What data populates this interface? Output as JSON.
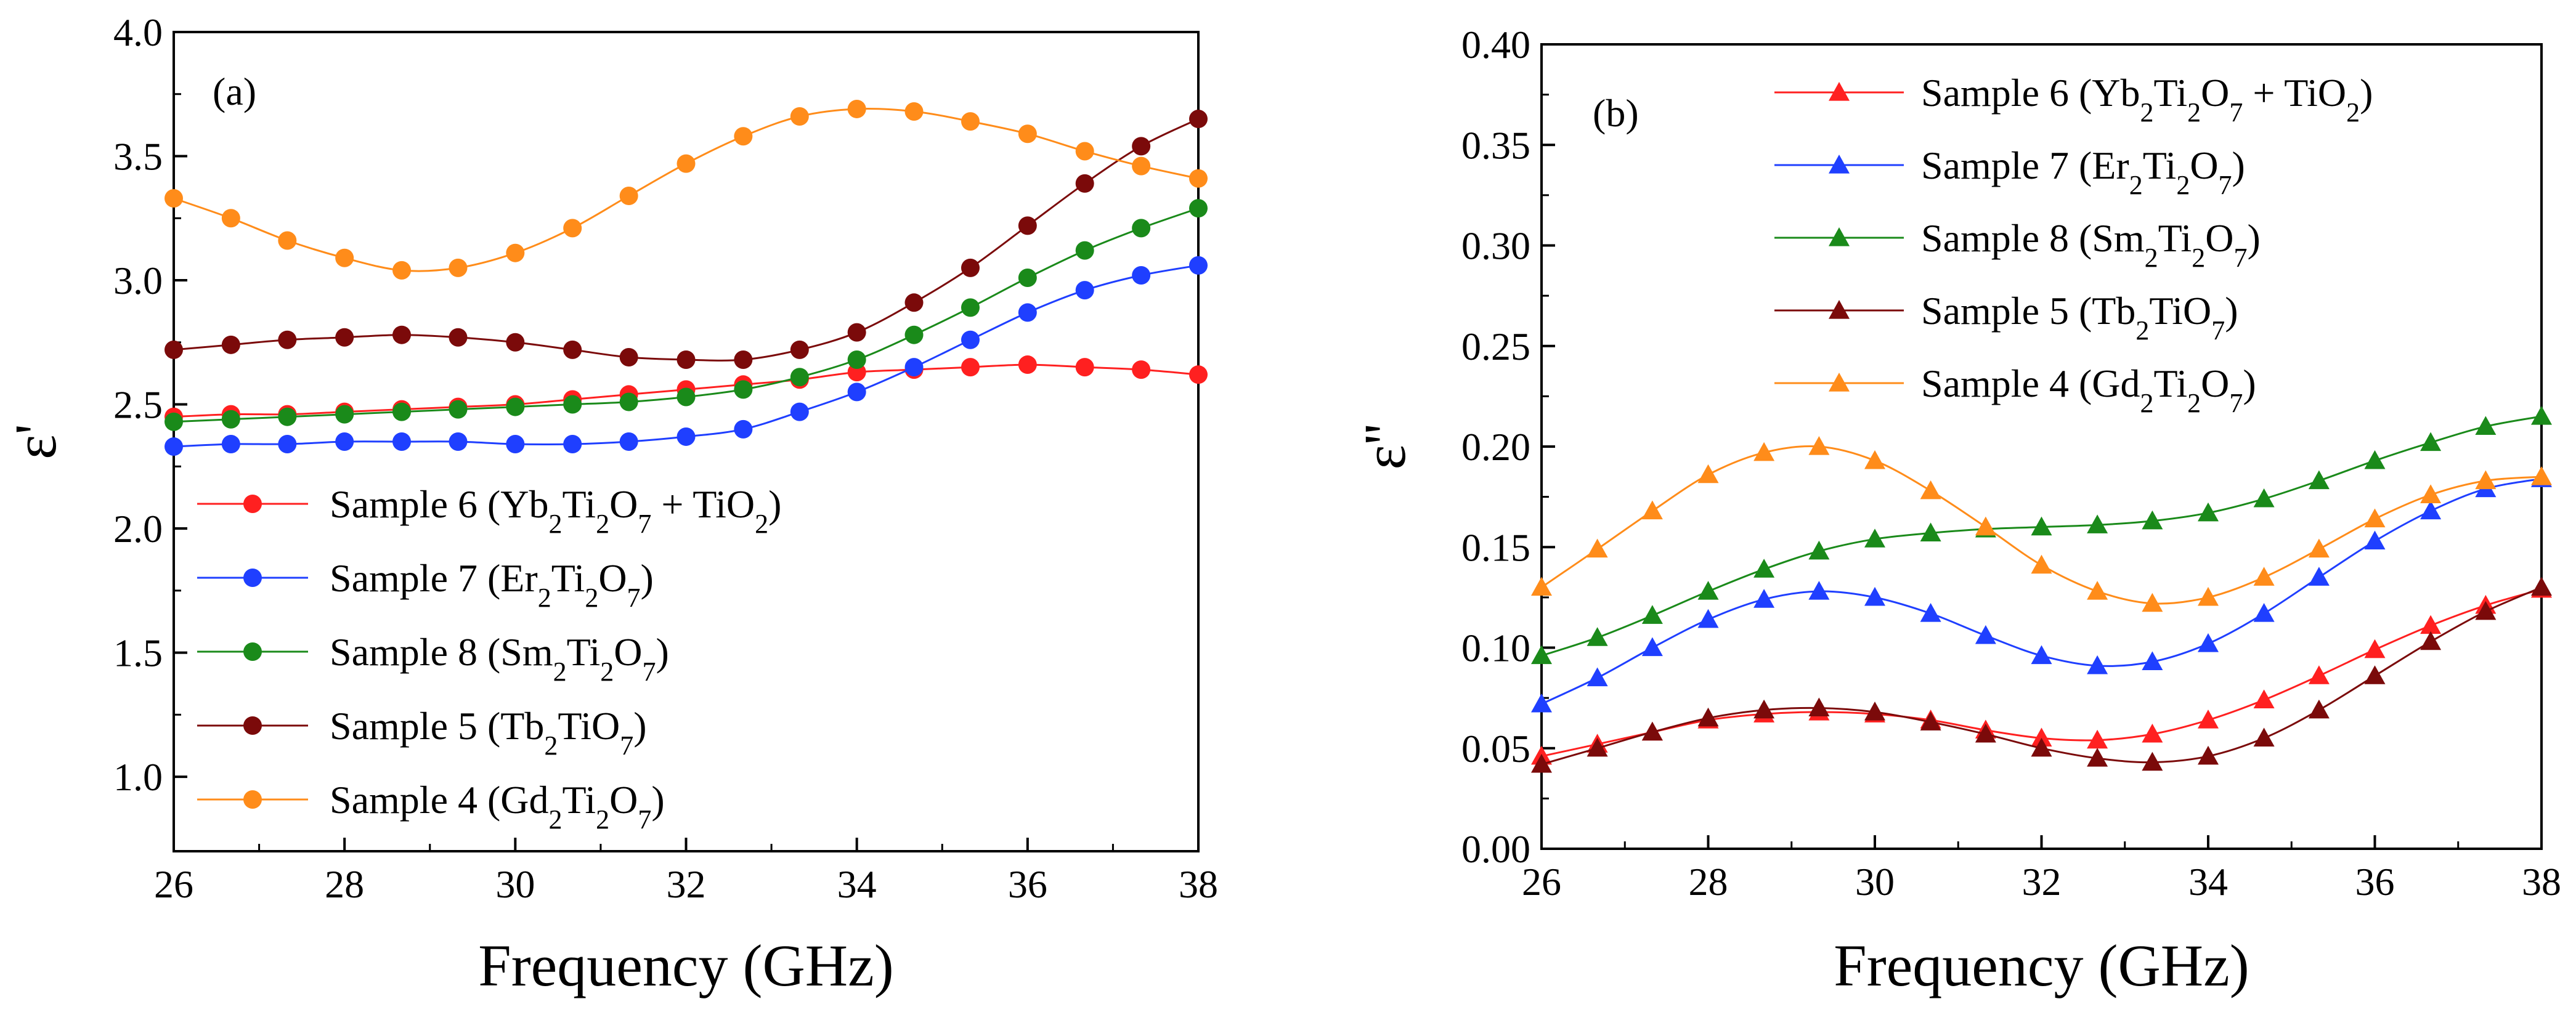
{
  "chart_data": [
    {
      "type": "line",
      "panel_label": "(a)",
      "xlabel": "Frequency (GHz)",
      "ylabel": "ε'",
      "xlim": [
        26,
        38
      ],
      "ylim": [
        0.7,
        4.0
      ],
      "x_ticks": [
        26,
        28,
        30,
        32,
        34,
        36,
        38
      ],
      "y_ticks": [
        1.0,
        1.5,
        2.0,
        2.5,
        3.0,
        3.5,
        4.0
      ],
      "x_tick_labels": [
        "26",
        "28",
        "30",
        "32",
        "34",
        "36",
        "38"
      ],
      "y_tick_labels": [
        "1.0",
        "1.5",
        "2.0",
        "2.5",
        "3.0",
        "3.5",
        "4.0"
      ],
      "marker": "circle",
      "legend_position": "lower-left",
      "x": [
        26.0,
        26.67,
        27.33,
        28.0,
        28.67,
        29.33,
        30.0,
        30.67,
        31.33,
        32.0,
        32.67,
        33.33,
        34.0,
        34.67,
        35.33,
        36.0,
        36.67,
        37.33,
        38.0
      ],
      "series": [
        {
          "name": "Sample 6",
          "formula": [
            [
              "",
              "(Yb"
            ],
            [
              "sub",
              "2"
            ],
            [
              "",
              "Ti"
            ],
            [
              "sub",
              "2"
            ],
            [
              "",
              "O"
            ],
            [
              "sub",
              "7"
            ],
            [
              "",
              " + TiO"
            ],
            [
              "sub",
              "2"
            ],
            [
              "",
              ")"
            ]
          ],
          "color": "#ff2020",
          "values": [
            2.45,
            2.46,
            2.46,
            2.47,
            2.48,
            2.49,
            2.5,
            2.52,
            2.54,
            2.56,
            2.58,
            2.6,
            2.63,
            2.64,
            2.65,
            2.66,
            2.65,
            2.64,
            2.62
          ]
        },
        {
          "name": "Sample 7",
          "formula": [
            [
              "",
              "(Er"
            ],
            [
              "sub",
              "2"
            ],
            [
              "",
              "Ti"
            ],
            [
              "sub",
              "2"
            ],
            [
              "",
              "O"
            ],
            [
              "sub",
              "7"
            ],
            [
              "",
              ")"
            ]
          ],
          "color": "#1f3fff",
          "values": [
            2.33,
            2.34,
            2.34,
            2.35,
            2.35,
            2.35,
            2.34,
            2.34,
            2.35,
            2.37,
            2.4,
            2.47,
            2.55,
            2.65,
            2.76,
            2.87,
            2.96,
            3.02,
            3.06
          ]
        },
        {
          "name": "Sample 8",
          "formula": [
            [
              "",
              "(Sm"
            ],
            [
              "sub",
              "2"
            ],
            [
              "",
              "Ti"
            ],
            [
              "sub",
              "2"
            ],
            [
              "",
              "O"
            ],
            [
              "sub",
              "7"
            ],
            [
              "",
              ")"
            ]
          ],
          "color": "#1a8a1a",
          "values": [
            2.43,
            2.44,
            2.45,
            2.46,
            2.47,
            2.48,
            2.49,
            2.5,
            2.51,
            2.53,
            2.56,
            2.61,
            2.68,
            2.78,
            2.89,
            3.01,
            3.12,
            3.21,
            3.29
          ]
        },
        {
          "name": "Sample 5",
          "formula": [
            [
              "",
              "(Tb"
            ],
            [
              "sub",
              "2"
            ],
            [
              "",
              "TiO"
            ],
            [
              "sub",
              "7"
            ],
            [
              "",
              ")"
            ]
          ],
          "color": "#7b0a0a",
          "values": [
            2.72,
            2.74,
            2.76,
            2.77,
            2.78,
            2.77,
            2.75,
            2.72,
            2.69,
            2.68,
            2.68,
            2.72,
            2.79,
            2.91,
            3.05,
            3.22,
            3.39,
            3.54,
            3.65
          ]
        },
        {
          "name": "Sample 4",
          "formula": [
            [
              "",
              "(Gd"
            ],
            [
              "sub",
              "2"
            ],
            [
              "",
              "Ti"
            ],
            [
              "sub",
              "2"
            ],
            [
              "",
              "O"
            ],
            [
              "sub",
              "7"
            ],
            [
              "",
              ")"
            ]
          ],
          "color": "#ff8c1a",
          "values": [
            3.33,
            3.25,
            3.16,
            3.09,
            3.04,
            3.05,
            3.11,
            3.21,
            3.34,
            3.47,
            3.58,
            3.66,
            3.69,
            3.68,
            3.64,
            3.59,
            3.52,
            3.46,
            3.41
          ]
        }
      ]
    },
    {
      "type": "line",
      "panel_label": "(b)",
      "xlabel": "Frequency (GHz)",
      "ylabel": "ε''",
      "xlim": [
        26,
        38
      ],
      "ylim": [
        0.0,
        0.4
      ],
      "x_ticks": [
        26,
        28,
        30,
        32,
        34,
        36,
        38
      ],
      "y_ticks": [
        0.0,
        0.05,
        0.1,
        0.15,
        0.2,
        0.25,
        0.3,
        0.35,
        0.4
      ],
      "x_tick_labels": [
        "26",
        "28",
        "30",
        "32",
        "34",
        "36",
        "38"
      ],
      "y_tick_labels": [
        "0.00",
        "0.05",
        "0.10",
        "0.15",
        "0.20",
        "0.25",
        "0.30",
        "0.35",
        "0.40"
      ],
      "marker": "triangle",
      "legend_position": "top-left",
      "x": [
        26.0,
        26.67,
        27.33,
        28.0,
        28.67,
        29.33,
        30.0,
        30.67,
        31.33,
        32.0,
        32.67,
        33.33,
        34.0,
        34.67,
        35.33,
        36.0,
        36.67,
        37.33,
        38.0
      ],
      "series": [
        {
          "name": "Sample 6",
          "formula": [
            [
              "",
              "(Yb"
            ],
            [
              "sub",
              "2"
            ],
            [
              "",
              "Ti"
            ],
            [
              "sub",
              "2"
            ],
            [
              "",
              "O"
            ],
            [
              "sub",
              "7"
            ],
            [
              "",
              " + TiO"
            ],
            [
              "sub",
              "2"
            ],
            [
              "",
              ")"
            ]
          ],
          "color": "#ff2020",
          "values": [
            0.046,
            0.052,
            0.058,
            0.064,
            0.067,
            0.068,
            0.067,
            0.064,
            0.059,
            0.055,
            0.054,
            0.057,
            0.064,
            0.074,
            0.086,
            0.099,
            0.111,
            0.121,
            0.129
          ]
        },
        {
          "name": "Sample 7",
          "formula": [
            [
              "",
              "(Er"
            ],
            [
              "sub",
              "2"
            ],
            [
              "",
              "Ti"
            ],
            [
              "sub",
              "2"
            ],
            [
              "",
              "O"
            ],
            [
              "sub",
              "7"
            ],
            [
              "",
              ")"
            ]
          ],
          "color": "#1f3fff",
          "values": [
            0.072,
            0.085,
            0.1,
            0.114,
            0.124,
            0.128,
            0.125,
            0.117,
            0.106,
            0.096,
            0.091,
            0.093,
            0.102,
            0.117,
            0.135,
            0.153,
            0.168,
            0.179,
            0.184
          ]
        },
        {
          "name": "Sample 8",
          "formula": [
            [
              "",
              "(Sm"
            ],
            [
              "sub",
              "2"
            ],
            [
              "",
              "Ti"
            ],
            [
              "sub",
              "2"
            ],
            [
              "",
              "O"
            ],
            [
              "sub",
              "7"
            ],
            [
              "",
              ")"
            ]
          ],
          "color": "#1a8a1a",
          "values": [
            0.096,
            0.105,
            0.116,
            0.128,
            0.139,
            0.148,
            0.154,
            0.157,
            0.159,
            0.16,
            0.161,
            0.163,
            0.167,
            0.174,
            0.183,
            0.193,
            0.202,
            0.21,
            0.215
          ]
        },
        {
          "name": "Sample 5",
          "formula": [
            [
              "",
              "(Tb"
            ],
            [
              "sub",
              "2"
            ],
            [
              "",
              "TiO"
            ],
            [
              "sub",
              "7"
            ],
            [
              "",
              ")"
            ]
          ],
          "color": "#7b0a0a",
          "values": [
            0.042,
            0.05,
            0.058,
            0.065,
            0.069,
            0.07,
            0.068,
            0.063,
            0.057,
            0.05,
            0.045,
            0.043,
            0.046,
            0.055,
            0.069,
            0.086,
            0.103,
            0.118,
            0.13
          ]
        },
        {
          "name": "Sample 4",
          "formula": [
            [
              "",
              "(Gd"
            ],
            [
              "sub",
              "2"
            ],
            [
              "",
              "Ti"
            ],
            [
              "sub",
              "2"
            ],
            [
              "",
              "O"
            ],
            [
              "sub",
              "7"
            ],
            [
              "",
              ")"
            ]
          ],
          "color": "#ff8c1a",
          "values": [
            0.13,
            0.149,
            0.168,
            0.186,
            0.197,
            0.2,
            0.193,
            0.178,
            0.16,
            0.141,
            0.128,
            0.122,
            0.125,
            0.135,
            0.149,
            0.164,
            0.176,
            0.183,
            0.185
          ]
        }
      ]
    }
  ]
}
